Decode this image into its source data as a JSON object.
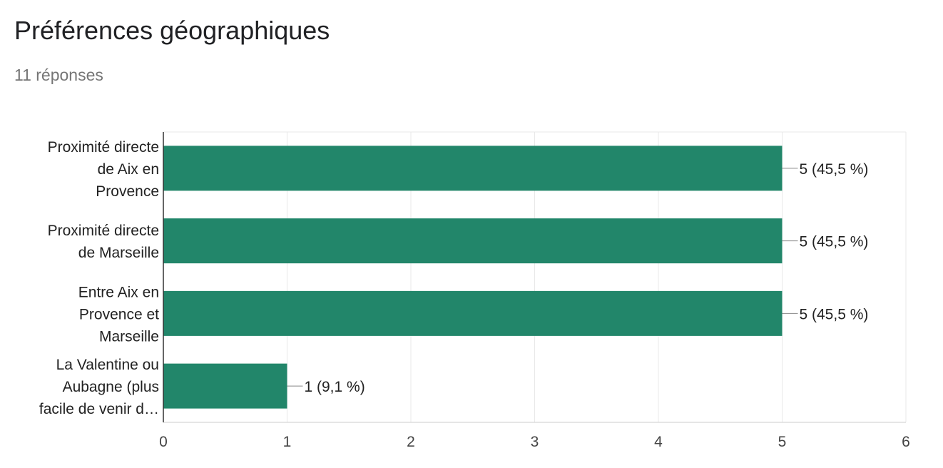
{
  "title": "Préférences géographiques",
  "subtitle": "11 réponses",
  "colors": {
    "bar": "#22866a",
    "grid": "#e8e8e8",
    "axis": "#333333",
    "connector": "#888888"
  },
  "chart_data": {
    "type": "bar",
    "orientation": "horizontal",
    "categories": [
      [
        "Proximité directe",
        "de Aix en",
        "Provence"
      ],
      [
        "Proximité directe",
        "de Marseille"
      ],
      [
        "Entre Aix en",
        "Provence et",
        "Marseille"
      ],
      [
        "La Valentine ou",
        "Aubagne (plus",
        "facile de venir d…"
      ]
    ],
    "values": [
      5,
      5,
      5,
      1
    ],
    "data_labels": [
      "5 (45,5 %)",
      "5 (45,5 %)",
      "5 (45,5 %)",
      "1 (9,1 %)"
    ],
    "xlim": [
      0,
      6
    ],
    "xticks": [
      "0",
      "1",
      "2",
      "3",
      "4",
      "5",
      "6"
    ],
    "grid": true,
    "legend": "none"
  }
}
